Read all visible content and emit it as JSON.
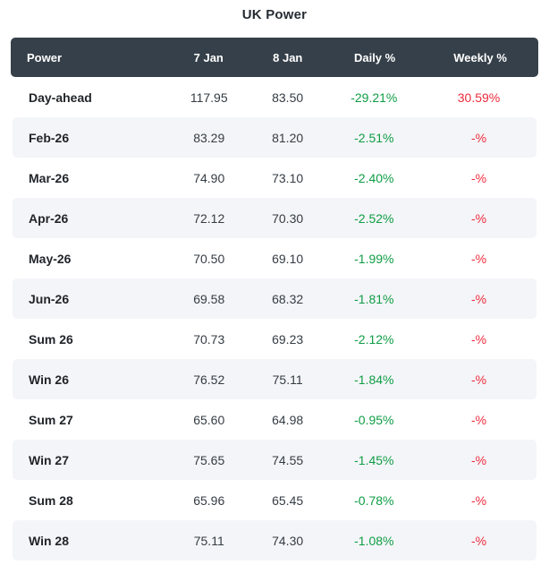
{
  "title": "UK Power",
  "colors": {
    "header_bg": "#36404a",
    "header_text": "#ffffff",
    "stripe": "#f4f5f8",
    "label": "#212529",
    "value": "#343c44",
    "green": "#0f9d45",
    "red": "#ee2b3c"
  },
  "chart_data": {
    "type": "table",
    "title": "UK Power",
    "columns": [
      "Power",
      "7 Jan",
      "8 Jan",
      "Daily %",
      "Weekly %"
    ],
    "rows": [
      {
        "label": "Day-ahead",
        "jan7": "117.95",
        "jan8": "83.50",
        "daily": "-29.21%",
        "weekly": "30.59%"
      },
      {
        "label": "Feb-26",
        "jan7": "83.29",
        "jan8": "81.20",
        "daily": "-2.51%",
        "weekly": "-%"
      },
      {
        "label": "Mar-26",
        "jan7": "74.90",
        "jan8": "73.10",
        "daily": "-2.40%",
        "weekly": "-%"
      },
      {
        "label": "Apr-26",
        "jan7": "72.12",
        "jan8": "70.30",
        "daily": "-2.52%",
        "weekly": "-%"
      },
      {
        "label": "May-26",
        "jan7": "70.50",
        "jan8": "69.10",
        "daily": "-1.99%",
        "weekly": "-%"
      },
      {
        "label": "Jun-26",
        "jan7": "69.58",
        "jan8": "68.32",
        "daily": "-1.81%",
        "weekly": "-%"
      },
      {
        "label": "Sum 26",
        "jan7": "70.73",
        "jan8": "69.23",
        "daily": "-2.12%",
        "weekly": "-%"
      },
      {
        "label": "Win 26",
        "jan7": "76.52",
        "jan8": "75.11",
        "daily": "-1.84%",
        "weekly": "-%"
      },
      {
        "label": "Sum 27",
        "jan7": "65.60",
        "jan8": "64.98",
        "daily": "-0.95%",
        "weekly": "-%"
      },
      {
        "label": "Win 27",
        "jan7": "75.65",
        "jan8": "74.55",
        "daily": "-1.45%",
        "weekly": "-%"
      },
      {
        "label": "Sum 28",
        "jan7": "65.96",
        "jan8": "65.45",
        "daily": "-0.78%",
        "weekly": "-%"
      },
      {
        "label": "Win 28",
        "jan7": "75.11",
        "jan8": "74.30",
        "daily": "-1.08%",
        "weekly": "-%"
      }
    ]
  }
}
